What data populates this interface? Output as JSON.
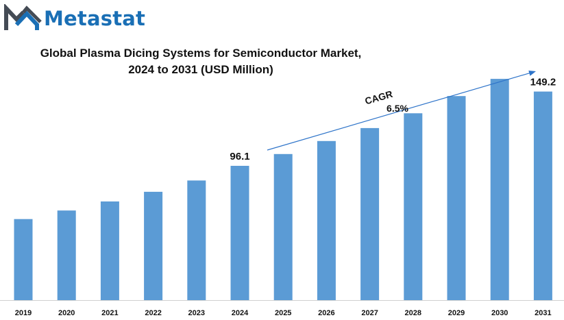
{
  "brand": {
    "name": "Metastat",
    "logo_icon": "metastat-m-icon",
    "color": "#1a6fb5"
  },
  "title_line1": "Global Plasma  Dicing Systems for Semiconductor Market,",
  "title_line2": "2024 to 2031 (USD Million)",
  "cagr": {
    "label": "CAGR",
    "value": "6.5%"
  },
  "colors": {
    "bar": "#5b9bd5",
    "arrow": "#2e74c9"
  },
  "chart_data": {
    "type": "bar",
    "categories": [
      "2019",
      "2020",
      "2021",
      "2022",
      "2023",
      "2024",
      "2025",
      "2026",
      "2027",
      "2028",
      "2029",
      "2030",
      "2031"
    ],
    "values": [
      58.0,
      64.1,
      70.6,
      77.5,
      85.6,
      96.1,
      104.5,
      113.8,
      123.1,
      133.7,
      146.0,
      158.3,
      149.2
    ],
    "data_labels": {
      "2024": "96.1",
      "2031": "149.2"
    },
    "title": "Global Plasma  Dicing Systems for Semiconductor Market, 2024 to 2031 (USD Million)",
    "xlabel": "",
    "ylabel": "",
    "grid": false,
    "legend": "none"
  }
}
